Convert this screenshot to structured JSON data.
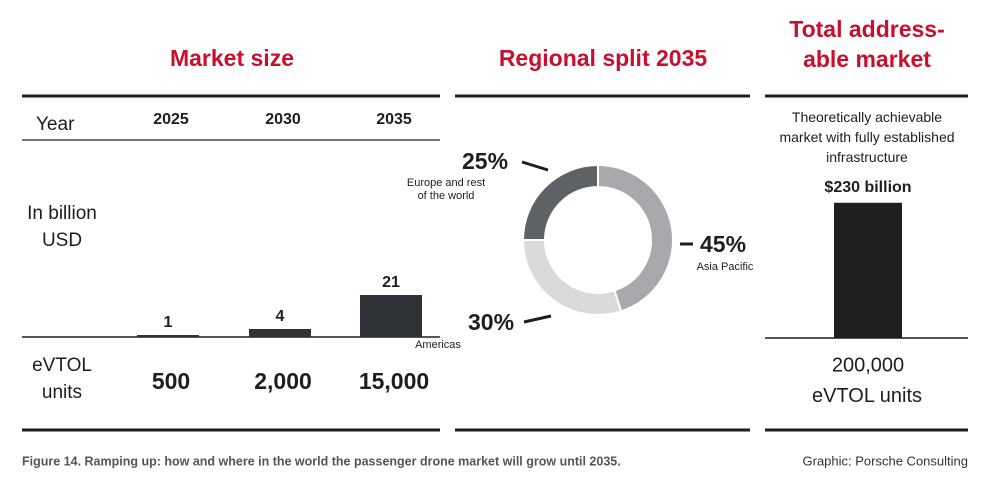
{
  "chart_data": [
    {
      "type": "bar",
      "title": "Market size",
      "x_label": "Year",
      "y_label": "In billion USD",
      "categories": [
        "2025",
        "2030",
        "2035"
      ],
      "values": [
        1,
        4,
        21
      ],
      "color": "#2f3237",
      "ylim": [
        0,
        50
      ],
      "units_label": "eVTOL units",
      "units": [
        {
          "value": 500,
          "label": "500"
        },
        {
          "value": 2000,
          "label": "2,000"
        },
        {
          "value": 15000,
          "label": "15,000"
        }
      ]
    },
    {
      "type": "pie",
      "title": "Regional split 2035",
      "donut": true,
      "categories": [
        "Asia Pacific",
        "Americas",
        "Europe and rest of the world"
      ],
      "values": [
        45,
        30,
        25
      ],
      "value_labels": [
        "45%",
        "30%",
        "25%"
      ],
      "colors": [
        "#a7a9ac",
        "#d9dadb",
        "#5e6166"
      ]
    },
    {
      "type": "bar",
      "title": "Total address-able market",
      "subtitle": "Theoretically achievable market with fully established infrastructure",
      "values": [
        230
      ],
      "value_labels": [
        "$230 billion"
      ],
      "color": "#1e1e1e",
      "ylim": [
        0,
        250
      ],
      "units": [
        {
          "value": 200000,
          "label": "200,000"
        }
      ],
      "units_label": "eVTOL units"
    }
  ],
  "caption": "Figure 14. Ramping up: how and where in the world the passenger drone market will grow until 2035.",
  "source": "Graphic: Porsche Consulting"
}
